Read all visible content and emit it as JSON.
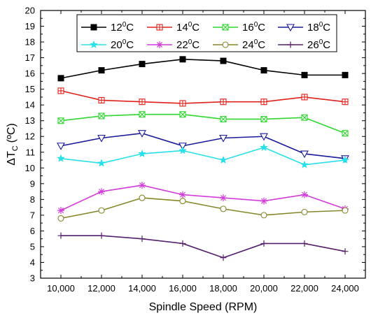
{
  "chart_data": {
    "type": "line",
    "xlabel": "Spindle Speed (RPM)",
    "ylabel_main": "ΔT",
    "ylabel_sub": "C",
    "ylabel_unit": "(ºC)",
    "xlim": [
      9000,
      25000
    ],
    "ylim": [
      3,
      20
    ],
    "x": [
      10000,
      12000,
      14000,
      16000,
      18000,
      20000,
      22000,
      24000
    ],
    "x_tick_labels": [
      "10,000",
      "12,000",
      "14,000",
      "16,000",
      "18,000",
      "20,000",
      "22,000",
      "24,000"
    ],
    "y_ticks": [
      3,
      4,
      5,
      6,
      7,
      8,
      9,
      10,
      11,
      12,
      13,
      14,
      15,
      16,
      17,
      18,
      19,
      20
    ],
    "grid": false,
    "legend_position": "top-right",
    "series": [
      {
        "name": "12",
        "unit": "C",
        "sup": "0",
        "color": "#000000",
        "marker": "filled-square",
        "values": [
          15.7,
          16.2,
          16.6,
          16.9,
          16.8,
          16.2,
          15.9,
          15.9
        ]
      },
      {
        "name": "14",
        "unit": "C",
        "sup": "0",
        "color": "#e0201b",
        "marker": "crossed-square",
        "values": [
          14.9,
          14.3,
          14.2,
          14.1,
          14.2,
          14.2,
          14.5,
          14.2
        ]
      },
      {
        "name": "16",
        "unit": "C",
        "sup": "0",
        "color": "#2fd62f",
        "marker": "x-square",
        "values": [
          13.0,
          13.3,
          13.4,
          13.4,
          13.1,
          13.1,
          13.2,
          12.2
        ]
      },
      {
        "name": "18",
        "unit": "C",
        "sup": "0",
        "color": "#1a1a9a",
        "marker": "down-triangle",
        "values": [
          11.4,
          11.9,
          12.2,
          11.4,
          11.9,
          12.0,
          10.9,
          10.6
        ]
      },
      {
        "name": "20",
        "unit": "C",
        "sup": "0",
        "color": "#28e0e8",
        "marker": "star",
        "values": [
          10.6,
          10.3,
          10.9,
          11.1,
          10.5,
          11.3,
          10.2,
          10.5
        ]
      },
      {
        "name": "22",
        "unit": "C",
        "sup": "0",
        "color": "#d23cd8",
        "marker": "asterisk",
        "values": [
          7.3,
          8.5,
          8.9,
          8.3,
          8.1,
          7.9,
          8.3,
          7.4
        ]
      },
      {
        "name": "24",
        "unit": "C",
        "sup": "0",
        "color": "#86862a",
        "marker": "open-circle",
        "values": [
          6.8,
          7.3,
          8.1,
          7.9,
          7.4,
          7.0,
          7.2,
          7.3
        ]
      },
      {
        "name": "26",
        "unit": "C",
        "sup": "0",
        "color": "#551f6b",
        "marker": "plus",
        "values": [
          5.7,
          5.7,
          5.5,
          5.2,
          4.3,
          5.2,
          5.2,
          4.7
        ]
      }
    ]
  }
}
